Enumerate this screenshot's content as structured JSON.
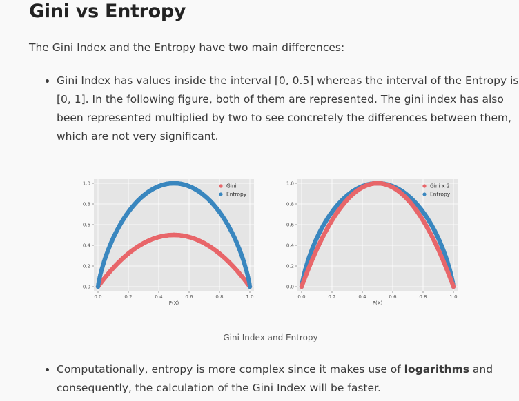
{
  "title": "Gini vs Entropy",
  "intro": "The Gini Index and the Entropy have two main differences:",
  "bullets": [
    "Gini Index has values inside the interval [0, 0.5] whereas the interval of the Entropy is [0, 1]. In the following figure, both of them are represented. The gini index has also been represented multiplied by two to see concretely the differences between them, which are not very significant.",
    "Computationally, entropy is more complex since it makes use of ",
    "logarithms",
    " and consequently, the calculation of the Gini Index will be faster."
  ],
  "caption": "Gini Index and Entropy",
  "colors": {
    "gini": "#e8666a",
    "entropy": "#3a87bf",
    "panel": "#e5e5e5"
  },
  "chart_data": [
    {
      "type": "scatter",
      "xlabel": "P(X)",
      "xlim": [
        0,
        1
      ],
      "ylim": [
        0,
        1
      ],
      "xticks": [
        "0.0",
        "0.2",
        "0.4",
        "0.6",
        "0.8",
        "1.0"
      ],
      "yticks": [
        "0.0",
        "0.2",
        "0.4",
        "0.6",
        "0.8",
        "1.0"
      ],
      "grid": true,
      "legend_position": "top-right",
      "series": [
        {
          "name": "Gini",
          "function": "2*p*(1-p)",
          "color": "#e8666a"
        },
        {
          "name": "Entropy",
          "function": "-p*log2(p)-(1-p)*log2(1-p)",
          "color": "#3a87bf"
        }
      ],
      "x": [
        0.0,
        0.05,
        0.1,
        0.15,
        0.2,
        0.25,
        0.3,
        0.35,
        0.4,
        0.45,
        0.5,
        0.55,
        0.6,
        0.65,
        0.7,
        0.75,
        0.8,
        0.85,
        0.9,
        0.95,
        1.0
      ],
      "values": {
        "Gini": [
          0.0,
          0.095,
          0.18,
          0.255,
          0.32,
          0.375,
          0.42,
          0.455,
          0.48,
          0.495,
          0.5,
          0.495,
          0.48,
          0.455,
          0.42,
          0.375,
          0.32,
          0.255,
          0.18,
          0.095,
          0.0
        ],
        "Entropy": [
          0.0,
          0.286,
          0.469,
          0.61,
          0.722,
          0.811,
          0.881,
          0.934,
          0.971,
          0.993,
          1.0,
          0.993,
          0.971,
          0.934,
          0.881,
          0.811,
          0.722,
          0.61,
          0.469,
          0.286,
          0.0
        ]
      }
    },
    {
      "type": "scatter",
      "xlabel": "P(X)",
      "xlim": [
        0,
        1
      ],
      "ylim": [
        0,
        1
      ],
      "xticks": [
        "0.0",
        "0.2",
        "0.4",
        "0.6",
        "0.8",
        "1.0"
      ],
      "yticks": [
        "0.0",
        "0.2",
        "0.4",
        "0.6",
        "0.8",
        "1.0"
      ],
      "grid": true,
      "legend_position": "top-right",
      "series": [
        {
          "name": "Gini x 2",
          "function": "4*p*(1-p)",
          "color": "#e8666a"
        },
        {
          "name": "Entropy",
          "function": "-p*log2(p)-(1-p)*log2(1-p)",
          "color": "#3a87bf"
        }
      ],
      "x": [
        0.0,
        0.05,
        0.1,
        0.15,
        0.2,
        0.25,
        0.3,
        0.35,
        0.4,
        0.45,
        0.5,
        0.55,
        0.6,
        0.65,
        0.7,
        0.75,
        0.8,
        0.85,
        0.9,
        0.95,
        1.0
      ],
      "values": {
        "Gini x 2": [
          0.0,
          0.19,
          0.36,
          0.51,
          0.64,
          0.75,
          0.84,
          0.91,
          0.96,
          0.99,
          1.0,
          0.99,
          0.96,
          0.91,
          0.84,
          0.75,
          0.64,
          0.51,
          0.36,
          0.19,
          0.0
        ],
        "Entropy": [
          0.0,
          0.286,
          0.469,
          0.61,
          0.722,
          0.811,
          0.881,
          0.934,
          0.971,
          0.993,
          1.0,
          0.993,
          0.971,
          0.934,
          0.881,
          0.811,
          0.722,
          0.61,
          0.469,
          0.286,
          0.0
        ]
      }
    }
  ]
}
